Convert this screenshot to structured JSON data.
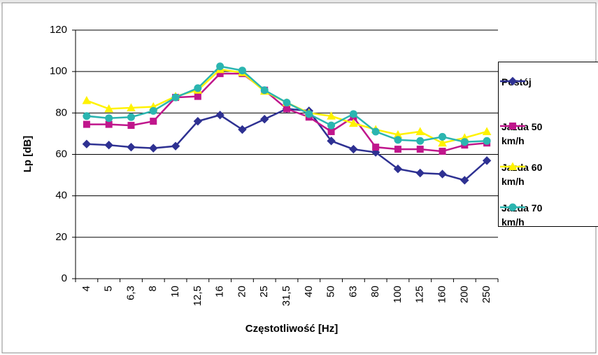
{
  "chart_data": {
    "type": "line",
    "categories": [
      "4",
      "5",
      "6,3",
      "8",
      "10",
      "12,5",
      "16",
      "20",
      "25",
      "31,5",
      "40",
      "50",
      "63",
      "80",
      "100",
      "125",
      "160",
      "200",
      "250"
    ],
    "series": [
      {
        "name": "Postój",
        "color": "#2e3192",
        "marker": "diamond",
        "values": [
          65,
          64.5,
          63.5,
          63,
          64,
          76,
          79,
          72,
          77,
          82,
          81,
          66.5,
          62.5,
          61,
          53,
          51,
          50.5,
          47.5,
          57
        ]
      },
      {
        "name": "Jazda 50 km/h",
        "color": "#c0168c",
        "marker": "square",
        "values": [
          74.5,
          74.5,
          74,
          76,
          87.5,
          88,
          99,
          99,
          91,
          82,
          78,
          71,
          78,
          63.5,
          62.5,
          62.5,
          61.5,
          64.5,
          65.5
        ]
      },
      {
        "name": "Jazda 60 km/h",
        "color": "#fff200",
        "marker": "triangle",
        "values": [
          86,
          82,
          82.5,
          83,
          88,
          91,
          101,
          99.5,
          90.5,
          85,
          80,
          78.5,
          75,
          72,
          69.5,
          71,
          65.5,
          68,
          71
        ]
      },
      {
        "name": "Jazda 70 km/h",
        "color": "#2bb5b0",
        "marker": "circle",
        "values": [
          78.5,
          77.5,
          78,
          81,
          87.5,
          92,
          102.5,
          100.5,
          91,
          85,
          79.5,
          74,
          79.5,
          71,
          67,
          66.5,
          68.5,
          66,
          66.5
        ]
      }
    ],
    "x_label": "Częstotliwość [Hz]",
    "y_label": "Lp [dB]",
    "ylim": [
      0,
      120
    ],
    "yticks": [
      0,
      20,
      40,
      60,
      80,
      100,
      120
    ],
    "grid": true,
    "legend": "right"
  }
}
